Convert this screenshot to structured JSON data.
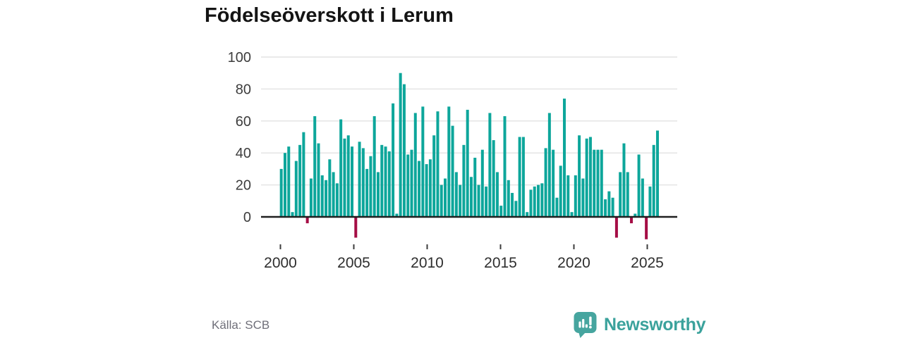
{
  "title": "Födelseöverskott i Lerum",
  "source": "Källa: SCB",
  "logo": {
    "brand": "Newsworthy"
  },
  "colors": {
    "positive_bar": "#0da69b",
    "negative_bar": "#a50d45",
    "title_text": "#141414",
    "axis_text": "#3d3d3d",
    "gridline": "#e4e4e4",
    "zero_line": "#1f1f1f",
    "source_text": "#6f6f79",
    "brand_teal": "#3ba29c"
  },
  "chart_data": {
    "type": "bar",
    "title": "Födelseöverskott i Lerum",
    "xlabel": "",
    "ylabel": "",
    "frequency": "quarterly",
    "start_period": "2000 Q1",
    "end_period": "2025 Q2",
    "x_tick_labels": [
      "2000",
      "2005",
      "2010",
      "2015",
      "2020",
      "2025"
    ],
    "x_tick_years": [
      2000,
      2005,
      2010,
      2015,
      2020,
      2025
    ],
    "y_tick_labels": [
      "0",
      "20",
      "40",
      "60",
      "80",
      "100"
    ],
    "y_ticks": [
      0,
      20,
      40,
      60,
      80,
      100
    ],
    "ylim": [
      -20,
      100
    ],
    "grid": "horizontal",
    "legend": "none",
    "values": [
      30,
      40,
      44,
      3,
      35,
      45,
      53,
      -4,
      24,
      63,
      46,
      26,
      23,
      36,
      28,
      21,
      61,
      49,
      51,
      44,
      -13,
      47,
      43,
      30,
      38,
      63,
      28,
      45,
      44,
      41,
      71,
      2,
      90,
      83,
      39,
      42,
      65,
      35,
      69,
      33,
      36,
      51,
      66,
      20,
      24,
      69,
      57,
      28,
      20,
      45,
      67,
      25,
      37,
      20,
      42,
      19,
      65,
      48,
      28,
      7,
      63,
      23,
      15,
      10,
      50,
      50,
      3,
      17,
      19,
      20,
      21,
      43,
      65,
      42,
      12,
      32,
      74,
      26,
      3,
      26,
      51,
      24,
      49,
      50,
      42,
      42,
      42,
      11,
      16,
      12,
      -13,
      28,
      46,
      28,
      -4,
      2,
      39,
      24,
      -14,
      19,
      45,
      54
    ]
  }
}
